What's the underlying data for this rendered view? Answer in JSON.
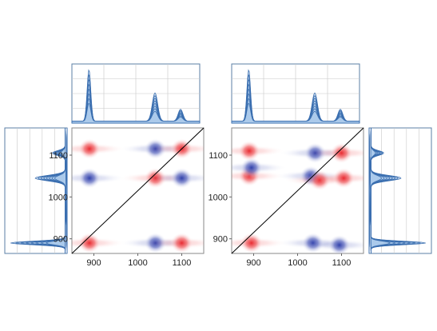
{
  "figure": {
    "description_colors": {
      "spectrum_stroke": "#3b6fb0",
      "spectrum_fill": "#a9c8ea",
      "frame": "#5b7fa6",
      "grid": "#c8c8c8",
      "positive": "#e8242a",
      "negative": "#2a3aa8",
      "diagonal": "#000000"
    }
  },
  "chart_data": [
    {
      "id": "synchronous",
      "type": "heatmap",
      "title": "",
      "xlabel": "",
      "ylabel": "",
      "xlim": [
        850,
        1150
      ],
      "ylim": [
        865,
        1165
      ],
      "xticks": [
        "900",
        "1000",
        "1100"
      ],
      "yticks": [
        "900",
        "1000",
        "1100"
      ],
      "peaks": [
        {
          "x": 890,
          "y": 890,
          "sign": "positive"
        },
        {
          "x": 890,
          "y": 1045,
          "sign": "negative"
        },
        {
          "x": 890,
          "y": 1115,
          "sign": "positive"
        },
        {
          "x": 1040,
          "y": 890,
          "sign": "negative"
        },
        {
          "x": 1040,
          "y": 1045,
          "sign": "positive"
        },
        {
          "x": 1040,
          "y": 1115,
          "sign": "negative"
        },
        {
          "x": 1100,
          "y": 890,
          "sign": "positive"
        },
        {
          "x": 1100,
          "y": 1045,
          "sign": "negative"
        },
        {
          "x": 1100,
          "y": 1115,
          "sign": "positive"
        }
      ]
    },
    {
      "id": "asynchronous",
      "type": "heatmap",
      "title": "",
      "xlabel": "",
      "ylabel": "",
      "xlim": [
        850,
        1150
      ],
      "ylim": [
        865,
        1165
      ],
      "xticks": [
        "900",
        "1000",
        "1100"
      ],
      "yticks": [
        "900",
        "1000",
        "1100"
      ],
      "peaks": [
        {
          "x": 895,
          "y": 890,
          "sign": "positive"
        },
        {
          "x": 890,
          "y": 1050,
          "sign": "positive"
        },
        {
          "x": 895,
          "y": 1070,
          "sign": "negative"
        },
        {
          "x": 890,
          "y": 1110,
          "sign": "positive"
        },
        {
          "x": 1035,
          "y": 890,
          "sign": "negative"
        },
        {
          "x": 1030,
          "y": 1050,
          "sign": "negative"
        },
        {
          "x": 1050,
          "y": 1040,
          "sign": "positive"
        },
        {
          "x": 1040,
          "y": 1105,
          "sign": "negative"
        },
        {
          "x": 1095,
          "y": 885,
          "sign": "negative"
        },
        {
          "x": 1105,
          "y": 1045,
          "sign": "positive"
        },
        {
          "x": 1100,
          "y": 1105,
          "sign": "positive"
        }
      ]
    },
    {
      "id": "reference-spectra",
      "type": "line",
      "xlim": [
        850,
        1150
      ],
      "ylim": [
        0,
        1
      ],
      "series_count": 8,
      "peaks": [
        {
          "x": 890,
          "height": 0.95,
          "width": 12
        },
        {
          "x": 1045,
          "height": 0.52,
          "width": 18
        },
        {
          "x": 1105,
          "height": 0.22,
          "width": 16
        }
      ]
    }
  ]
}
